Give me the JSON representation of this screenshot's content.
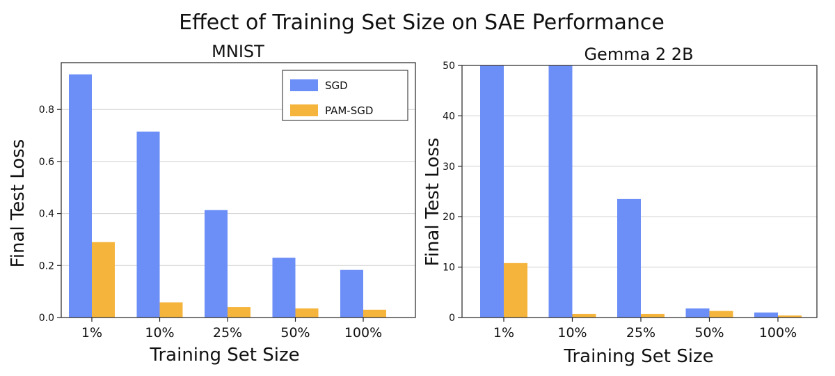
{
  "figure_title": "Effect of Training Set Size on SAE Performance",
  "colors": {
    "SGD": "#6b8ef7",
    "PAM-SGD": "#f5b43c"
  },
  "chart_data": [
    {
      "type": "bar",
      "title": "MNIST",
      "xlabel": "Training Set Size",
      "ylabel": "Final Test Loss",
      "categories": [
        "1%",
        "10%",
        "25%",
        "50%",
        "100%"
      ],
      "series": [
        {
          "name": "SGD",
          "values": [
            0.935,
            0.715,
            0.413,
            0.23,
            0.183
          ]
        },
        {
          "name": "PAM-SGD",
          "values": [
            0.29,
            0.058,
            0.04,
            0.035,
            0.03
          ]
        }
      ],
      "ylim": [
        0,
        0.98
      ],
      "yticks": [
        0.0,
        0.2,
        0.4,
        0.6,
        0.8
      ],
      "ytick_labels": [
        "0.0",
        "0.2",
        "0.4",
        "0.6",
        "0.8"
      ],
      "grid": true,
      "legend": {
        "position": "top-right",
        "entries": [
          "SGD",
          "PAM-SGD"
        ]
      }
    },
    {
      "type": "bar",
      "title": "Gemma 2 2B",
      "xlabel": "Training Set Size",
      "ylabel": "Final Test Loss",
      "categories": [
        "1%",
        "10%",
        "25%",
        "50%",
        "100%"
      ],
      "series": [
        {
          "name": "SGD",
          "values": [
            50,
            50,
            23.5,
            1.8,
            1.0
          ]
        },
        {
          "name": "PAM-SGD",
          "values": [
            10.8,
            0.7,
            0.7,
            1.3,
            0.4
          ]
        }
      ],
      "ylim": [
        0,
        50
      ],
      "yticks": [
        0,
        10,
        20,
        30,
        40,
        50
      ],
      "ytick_labels": [
        "0",
        "10",
        "20",
        "30",
        "40",
        "50"
      ],
      "grid": true,
      "legend": null
    }
  ]
}
